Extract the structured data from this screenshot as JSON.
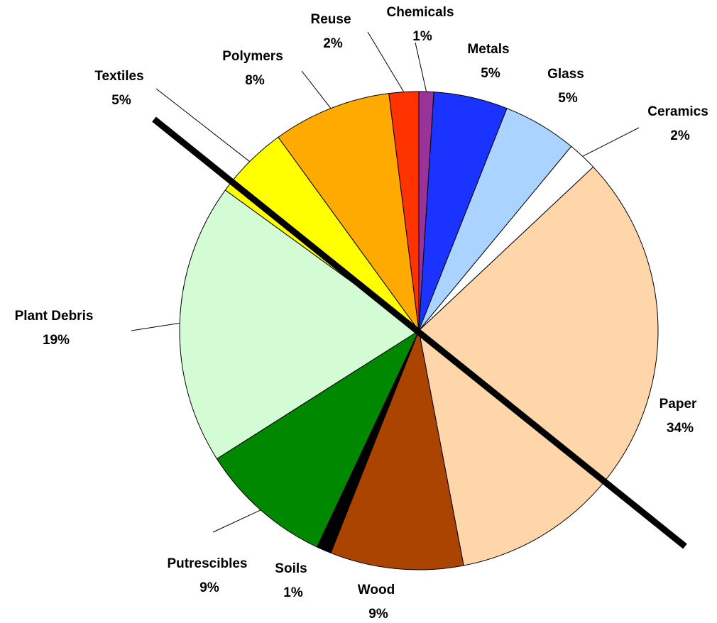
{
  "chart_data": {
    "type": "pie",
    "categories": [
      "Chemicals",
      "Metals",
      "Glass",
      "Ceramics",
      "Paper",
      "Wood",
      "Soils",
      "Putrescibles",
      "Plant Debris",
      "Textiles",
      "Polymers",
      "Reuse"
    ],
    "values": [
      1,
      5,
      5,
      2,
      34,
      9,
      1,
      9,
      19,
      5,
      8,
      2
    ],
    "value_labels": [
      "1%",
      "5%",
      "5%",
      "2%",
      "34%",
      "9%",
      "1%",
      "9%",
      "19%",
      "5%",
      "8%",
      "2%"
    ],
    "colors": [
      "#993399",
      "#1a33ff",
      "#aad4ff",
      "#ffffff",
      "#ffd5aa",
      "#aa4400",
      "#000000",
      "#008800",
      "#d4fcd4",
      "#ffff00",
      "#ffaa00",
      "#ff3300"
    ]
  }
}
